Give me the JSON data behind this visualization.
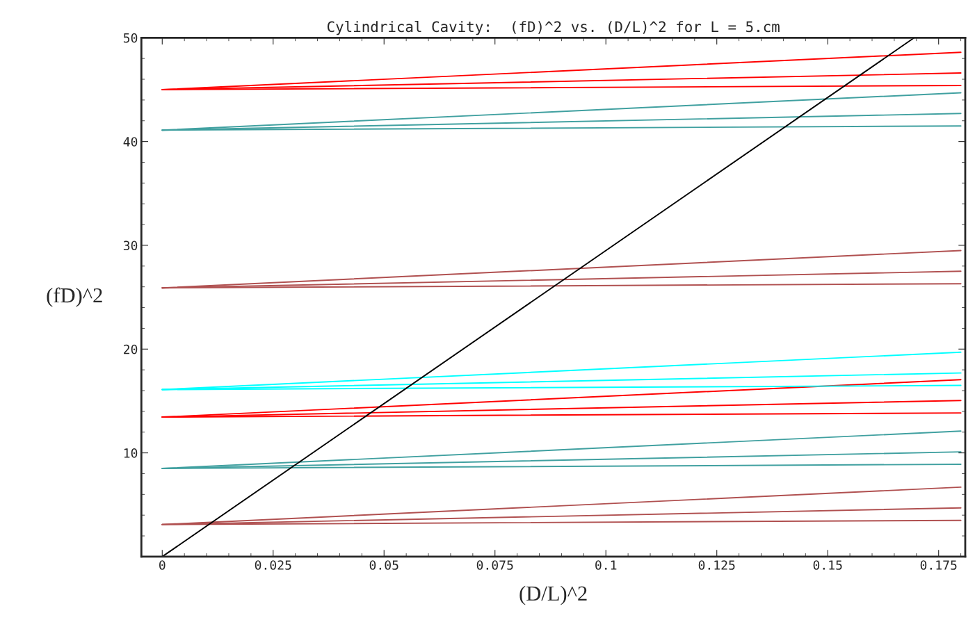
{
  "chart_data": {
    "type": "line",
    "title": "Cylindrical Cavity:  (fD)^2 vs. (D/L)^2 for L = 5.cm",
    "xlabel": "(D/L)^2",
    "ylabel": "(fD)^2",
    "xlim": [
      -0.0047,
      0.181
    ],
    "ylim": [
      0,
      50
    ],
    "xticks": [
      0,
      0.025,
      0.05,
      0.075,
      0.1,
      0.125,
      0.15,
      0.175
    ],
    "yticks": [
      {
        "value": 0,
        "label": null
      },
      10,
      20,
      30,
      40,
      50
    ],
    "grid": false,
    "legend": false,
    "marker": "none",
    "line_style": "solid",
    "series": [
      {
        "color": "#b05050",
        "x": [
          0,
          0.18
        ],
        "values": [
          3.1,
          3.5
        ]
      },
      {
        "color": "#b05050",
        "x": [
          0,
          0.18
        ],
        "values": [
          3.1,
          4.7
        ]
      },
      {
        "color": "#b05050",
        "x": [
          0,
          0.18
        ],
        "values": [
          3.1,
          6.7
        ]
      },
      {
        "color": "#40a0a0",
        "x": [
          0,
          0.18
        ],
        "values": [
          8.5,
          8.9
        ]
      },
      {
        "color": "#40a0a0",
        "x": [
          0,
          0.18
        ],
        "values": [
          8.5,
          10.1
        ]
      },
      {
        "color": "#40a0a0",
        "x": [
          0,
          0.18
        ],
        "values": [
          8.5,
          12.1
        ]
      },
      {
        "color": "#ff0000",
        "x": [
          0,
          0.18
        ],
        "values": [
          13.45,
          13.85
        ]
      },
      {
        "color": "#ff0000",
        "x": [
          0,
          0.18
        ],
        "values": [
          13.45,
          15.05
        ]
      },
      {
        "color": "#ff0000",
        "x": [
          0,
          0.18
        ],
        "values": [
          13.45,
          17.05
        ]
      },
      {
        "color": "#00ffff",
        "x": [
          0,
          0.18
        ],
        "values": [
          16.1,
          16.5
        ]
      },
      {
        "color": "#00ffff",
        "x": [
          0,
          0.18
        ],
        "values": [
          16.1,
          17.7
        ]
      },
      {
        "color": "#00ffff",
        "x": [
          0,
          0.18
        ],
        "values": [
          16.1,
          19.7
        ]
      },
      {
        "color": "#b05050",
        "x": [
          0,
          0.18
        ],
        "values": [
          25.9,
          26.3
        ]
      },
      {
        "color": "#b05050",
        "x": [
          0,
          0.18
        ],
        "values": [
          25.9,
          27.5
        ]
      },
      {
        "color": "#b05050",
        "x": [
          0,
          0.18
        ],
        "values": [
          25.9,
          29.5
        ]
      },
      {
        "color": "#40a0a0",
        "x": [
          0,
          0.18
        ],
        "values": [
          41.1,
          41.5
        ]
      },
      {
        "color": "#40a0a0",
        "x": [
          0,
          0.18
        ],
        "values": [
          41.1,
          42.7
        ]
      },
      {
        "color": "#40a0a0",
        "x": [
          0,
          0.18
        ],
        "values": [
          41.1,
          44.7
        ]
      },
      {
        "color": "#ff0000",
        "x": [
          0,
          0.18
        ],
        "values": [
          45.0,
          45.4
        ]
      },
      {
        "color": "#ff0000",
        "x": [
          0,
          0.18
        ],
        "values": [
          45.0,
          46.6
        ]
      },
      {
        "color": "#ff0000",
        "x": [
          0,
          0.18
        ],
        "values": [
          45.0,
          48.6
        ]
      },
      {
        "color": "#000000",
        "x": [
          0,
          0.1695
        ],
        "values": [
          0,
          50
        ]
      }
    ]
  }
}
